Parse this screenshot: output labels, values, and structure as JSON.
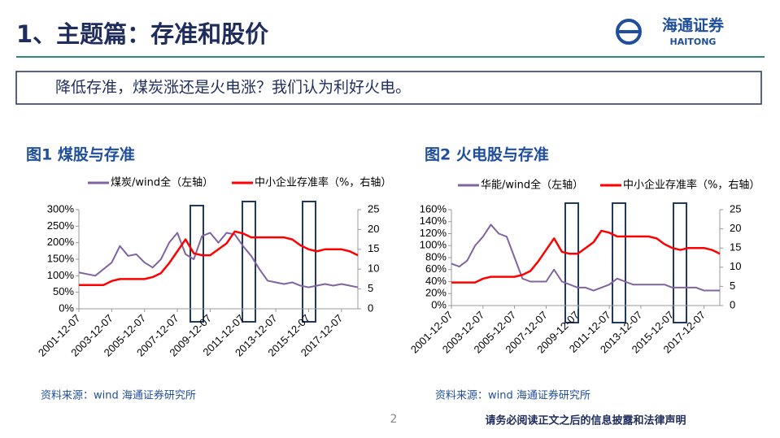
{
  "slide": {
    "title": "1、主题篇：存准和股价",
    "logo_cn": "海通证券",
    "logo_en": "HAITONG",
    "subtitle": "降低存准，煤炭涨还是火电涨？我们认为利好火电。",
    "page": 2,
    "footer": "请务必阅读正文之后的信息披露和法律声明"
  },
  "chart_data": [
    {
      "type": "line",
      "title": "图1  煤股与存准",
      "source": "资料来源：wind  海通证券研究所",
      "categories": [
        "2001-12-07",
        null,
        null,
        null,
        "2003-12-07",
        null,
        null,
        null,
        "2005-12-07",
        null,
        null,
        null,
        "2007-12-07",
        null,
        null,
        null,
        "2009-12-07",
        null,
        null,
        null,
        "2011-12-07",
        null,
        null,
        null,
        "2013-12-07",
        null,
        null,
        null,
        "2015-12-07",
        null,
        null,
        null,
        "2017-12-07",
        null,
        null
      ],
      "series": [
        {
          "name": "煤炭/wind全（左轴）",
          "color": "#8064a2",
          "values": [
            110,
            105,
            100,
            120,
            140,
            190,
            160,
            165,
            140,
            125,
            150,
            200,
            230,
            165,
            150,
            220,
            230,
            200,
            230,
            225,
            190,
            160,
            120,
            85,
            80,
            75,
            80,
            70,
            65,
            70,
            75,
            70,
            75,
            70,
            65
          ]
        },
        {
          "name": "中小企业存准率（%，右轴）",
          "color": "#ff0000",
          "axis": "y2",
          "values": [
            6,
            6,
            6,
            6,
            7,
            7.5,
            7.5,
            7.5,
            7.5,
            8,
            9,
            11.5,
            14.5,
            17.5,
            14,
            13.5,
            13.5,
            15,
            16.5,
            19.5,
            19,
            18,
            18,
            18,
            18,
            18,
            17.5,
            16,
            15,
            14.5,
            15,
            15,
            15,
            14.5,
            13.5
          ]
        }
      ],
      "ylim": [
        0,
        300
      ],
      "yticks": [
        {
          "value": 0,
          "label": "0%"
        },
        {
          "value": 50,
          "label": "50%"
        },
        {
          "value": 100,
          "label": "100%"
        },
        {
          "value": 150,
          "label": "150%"
        },
        {
          "value": 200,
          "label": "200%"
        },
        {
          "value": 250,
          "label": "250%"
        },
        {
          "value": 300,
          "label": "300%"
        }
      ],
      "y2lim": [
        0,
        25
      ],
      "y2ticks": [
        0,
        5,
        10,
        15,
        20,
        25
      ]
    },
    {
      "type": "line",
      "title": "图2  火电股与存准",
      "source": "资料来源：wind  海通证券研究所",
      "categories": [
        "2001-12-07",
        null,
        null,
        null,
        "2003-12-07",
        null,
        null,
        null,
        "2005-12-07",
        null,
        null,
        null,
        "2007-12-07",
        null,
        null,
        null,
        "2009-12-07",
        null,
        null,
        null,
        "2011-12-07",
        null,
        null,
        null,
        "2013-12-07",
        null,
        null,
        null,
        "2015-12-07",
        null,
        null,
        null,
        "2017-12-07",
        null,
        null
      ],
      "series": [
        {
          "name": "华能/wind全（左轴）",
          "color": "#8064a2",
          "values": [
            70,
            65,
            75,
            100,
            115,
            135,
            120,
            115,
            80,
            45,
            40,
            40,
            40,
            60,
            40,
            35,
            30,
            30,
            25,
            30,
            35,
            45,
            40,
            35,
            35,
            35,
            35,
            35,
            30,
            30,
            30,
            30,
            25,
            25,
            25
          ]
        },
        {
          "name": "中小企业存准率（%，右轴）",
          "color": "#ff0000",
          "axis": "y2",
          "values": [
            6,
            6,
            6,
            6,
            7,
            7.5,
            7.5,
            7.5,
            7.5,
            8,
            9,
            11.5,
            14.5,
            17.5,
            14,
            13.5,
            13.5,
            15,
            16.5,
            19.5,
            19,
            18,
            18,
            18,
            18,
            18,
            17.5,
            16,
            15,
            14.5,
            15,
            15,
            15,
            14.5,
            13.5
          ]
        }
      ],
      "ylim": [
        0,
        160
      ],
      "yticks": [
        {
          "value": 0,
          "label": "0%"
        },
        {
          "value": 20,
          "label": "20%"
        },
        {
          "value": 40,
          "label": "40%"
        },
        {
          "value": 60,
          "label": "60%"
        },
        {
          "value": 80,
          "label": "80%"
        },
        {
          "value": 100,
          "label": "100%"
        },
        {
          "value": 120,
          "label": "120%"
        },
        {
          "value": 140,
          "label": "140%"
        },
        {
          "value": 160,
          "label": "160%"
        }
      ],
      "y2lim": [
        0,
        25
      ],
      "y2ticks": [
        0,
        5,
        10,
        15,
        20,
        25
      ]
    }
  ]
}
